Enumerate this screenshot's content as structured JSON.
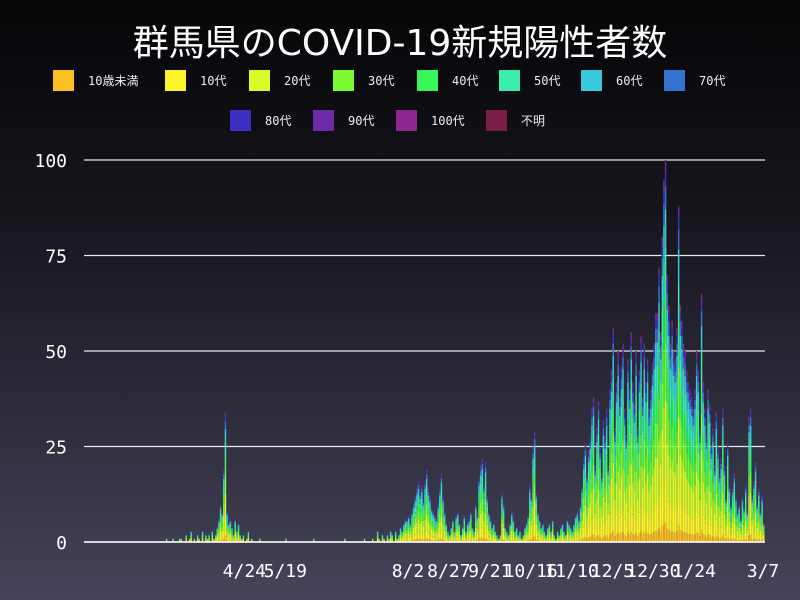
{
  "chart_data": {
    "type": "bar",
    "stacked": true,
    "title": "群馬県のCOVID-19新規陽性者数",
    "xlabel": "",
    "ylabel": "",
    "ylim": [
      0,
      100
    ],
    "yticks": [
      "0",
      "25",
      "50",
      "75",
      "100"
    ],
    "xlim": [
      "2020-01-17",
      "2021-03-07"
    ],
    "xticks": [
      {
        "date": "2020-04-24",
        "label": "4/24"
      },
      {
        "date": "2020-05-19",
        "label": "5/19"
      },
      {
        "date": "2020-08-02",
        "label": "8/2"
      },
      {
        "date": "2020-08-27",
        "label": "8/27"
      },
      {
        "date": "2020-09-21",
        "label": "9/21"
      },
      {
        "date": "2020-10-16",
        "label": "10/16"
      },
      {
        "date": "2020-11-10",
        "label": "11/10"
      },
      {
        "date": "2020-12-05",
        "label": "12/5"
      },
      {
        "date": "2020-12-30",
        "label": "12/30"
      },
      {
        "date": "2021-01-24",
        "label": "1/24"
      },
      {
        "date": "2021-03-07",
        "label": "3/7"
      }
    ],
    "grid": true,
    "legend_position": "top",
    "legend": [
      {
        "name": "10歳未満",
        "color": "#fbbf24"
      },
      {
        "name": "10代",
        "color": "#fef42a"
      },
      {
        "name": "20代",
        "color": "#d9fb2a"
      },
      {
        "name": "30代",
        "color": "#7bfb32"
      },
      {
        "name": "40代",
        "color": "#38f55a"
      },
      {
        "name": "50代",
        "color": "#3cecaa"
      },
      {
        "name": "60代",
        "color": "#38c9dc"
      },
      {
        "name": "70代",
        "color": "#3474d0"
      },
      {
        "name": "80代",
        "color": "#3a30c0"
      },
      {
        "name": "90代",
        "color": "#6c2ba8"
      },
      {
        "name": "100代",
        "color": "#8e2690"
      },
      {
        "name": "不明",
        "color": "#7a1f4a"
      }
    ],
    "daily_totals_by_month": {
      "2020-03": [
        0,
        0,
        0,
        0,
        0,
        0,
        1,
        0,
        0,
        0,
        1,
        0,
        0,
        0,
        1,
        1,
        0,
        0,
        2,
        0,
        1,
        3,
        0,
        1,
        0,
        2,
        1,
        0,
        3,
        0,
        2
      ],
      "2020-04": [
        1,
        2,
        0,
        3,
        1,
        2,
        4,
        6,
        10,
        8,
        19,
        34,
        8,
        5,
        6,
        4,
        2,
        6,
        3,
        5,
        2,
        1,
        2,
        0,
        1,
        3,
        0,
        1,
        0,
        0
      ],
      "2020-05": [
        0,
        0,
        1,
        0,
        0,
        0,
        0,
        0,
        0,
        0,
        0,
        0,
        0,
        0,
        0,
        0,
        0,
        0,
        1,
        0,
        0,
        0,
        0,
        0,
        0,
        0,
        0,
        0,
        0,
        0,
        0
      ],
      "2020-06": [
        0,
        0,
        0,
        0,
        1,
        0,
        0,
        0,
        0,
        0,
        0,
        0,
        0,
        0,
        0,
        0,
        0,
        0,
        0,
        0,
        0,
        0,
        0,
        1,
        0,
        0,
        0,
        0,
        0,
        0
      ],
      "2020-07": [
        0,
        0,
        0,
        0,
        0,
        1,
        0,
        0,
        0,
        0,
        1,
        0,
        0,
        3,
        1,
        0,
        2,
        1,
        0,
        2,
        1,
        3,
        2,
        0,
        3,
        1,
        2,
        4,
        3,
        5,
        6
      ],
      "2020-08": [
        6,
        7,
        5,
        8,
        10,
        12,
        14,
        16,
        13,
        15,
        11,
        16,
        19,
        14,
        12,
        9,
        8,
        7,
        6,
        10,
        14,
        18,
        12,
        8,
        5,
        3,
        2,
        4,
        6,
        3,
        7
      ],
      "2020-09": [
        8,
        5,
        2,
        4,
        7,
        3,
        5,
        6,
        8,
        4,
        3,
        10,
        7,
        17,
        20,
        22,
        15,
        21,
        12,
        8,
        6,
        4,
        5,
        3,
        2,
        1,
        2,
        13,
        10,
        4
      ],
      "2020-10": [
        3,
        2,
        5,
        8,
        6,
        3,
        4,
        2,
        3,
        1,
        2,
        4,
        5,
        7,
        15,
        12,
        25,
        29,
        13,
        8,
        6,
        4,
        5,
        3,
        2,
        4,
        5,
        3,
        6,
        2,
        1
      ],
      "2020-11": [
        3,
        2,
        4,
        5,
        3,
        2,
        6,
        5,
        4,
        3,
        5,
        7,
        8,
        6,
        10,
        15,
        22,
        26,
        18,
        24,
        28,
        35,
        38,
        20,
        30,
        37,
        25,
        18,
        32,
        28
      ],
      "2020-12": [
        35,
        20,
        40,
        45,
        56,
        30,
        42,
        50,
        38,
        46,
        52,
        35,
        28,
        48,
        40,
        55,
        42,
        36,
        50,
        30,
        45,
        54,
        38,
        52,
        42,
        48,
        35,
        40,
        47,
        52,
        60
      ],
      "2021-01": [
        60,
        72,
        55,
        80,
        95,
        100,
        70,
        62,
        52,
        58,
        50,
        48,
        56,
        88,
        62,
        58,
        52,
        50,
        45,
        42,
        40,
        38,
        35,
        40,
        50,
        45,
        30,
        65,
        42,
        35,
        28
      ],
      "2021-02": [
        40,
        36,
        25,
        30,
        20,
        34,
        25,
        18,
        22,
        35,
        20,
        12,
        26,
        15,
        10,
        14,
        18,
        12,
        8,
        10,
        6,
        12,
        9,
        15,
        8,
        33,
        35,
        12
      ],
      "2021-03": [
        16,
        21,
        10,
        14,
        8,
        12,
        5
      ]
    }
  }
}
